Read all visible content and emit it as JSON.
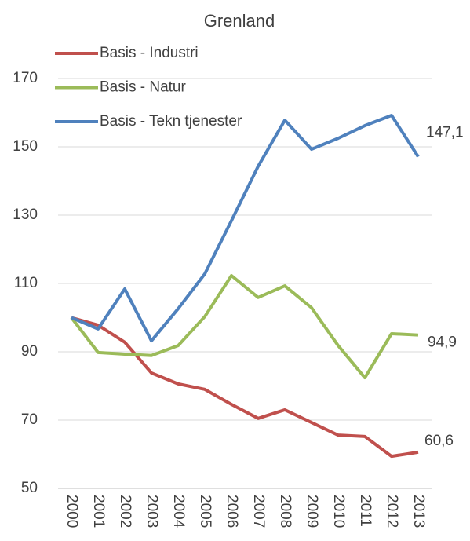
{
  "chart_data": {
    "type": "line",
    "title": "Grenland",
    "x": [
      "2000",
      "2001",
      "2002",
      "2003",
      "2004",
      "2005",
      "2006",
      "2007",
      "2008",
      "2009",
      "2010",
      "2011",
      "2012",
      "2013"
    ],
    "series": [
      {
        "name": "Basis - Industri",
        "color": "#c0504d",
        "values": [
          100,
          97.8,
          92.8,
          83.8,
          80.6,
          79,
          74.6,
          70.5,
          73,
          69.3,
          65.6,
          65.2,
          59.4,
          60.6
        ],
        "value_labels": [
          null,
          null,
          null,
          null,
          null,
          null,
          null,
          null,
          null,
          null,
          null,
          null,
          null,
          "60,6"
        ]
      },
      {
        "name": "Basis - Natur",
        "color": "#9bbb59",
        "values": [
          100,
          89.8,
          89.3,
          88.9,
          91.8,
          100.3,
          112.3,
          105.9,
          109.3,
          102.9,
          91.8,
          82.4,
          95.3,
          94.9
        ],
        "value_labels": [
          null,
          null,
          null,
          null,
          null,
          null,
          null,
          null,
          null,
          null,
          null,
          null,
          null,
          "94,9"
        ]
      },
      {
        "name": "Basis - Tekn tjenester",
        "color": "#4f81bd",
        "values": [
          100,
          96.7,
          108.4,
          93.2,
          102.6,
          112.8,
          128.4,
          144.3,
          157.8,
          149.3,
          152.5,
          156.2,
          159.2,
          147.1
        ],
        "value_labels": [
          null,
          null,
          null,
          null,
          null,
          null,
          null,
          null,
          null,
          null,
          null,
          null,
          null,
          "147,1"
        ]
      }
    ],
    "ylim": [
      50,
      170
    ],
    "yticks": [
      50,
      70,
      90,
      110,
      130,
      150,
      170
    ],
    "grid": true,
    "legend": "top-left"
  }
}
